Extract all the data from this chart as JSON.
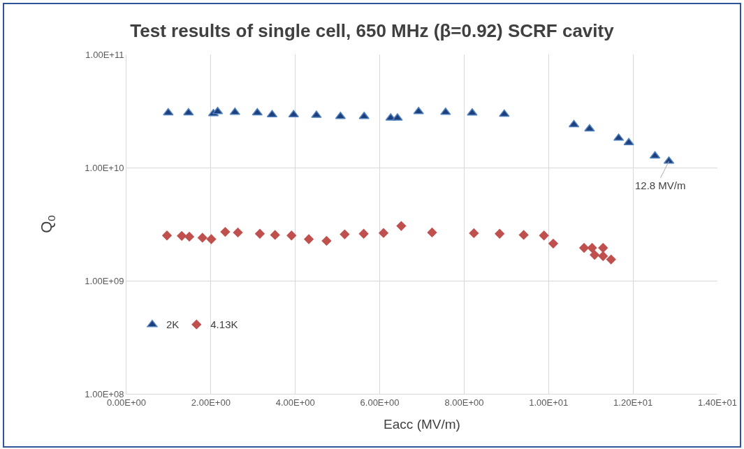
{
  "chart_data": {
    "type": "scatter",
    "title": "Test results of single cell, 650 MHz (β=0.92) SCRF cavity",
    "xlabel": "Eacc (MV/m)",
    "ylabel": "Q$_{0}$",
    "log": "y",
    "grid": true,
    "legend": "bottom left",
    "xlim": [
      0,
      14
    ],
    "xticks": [
      {
        "value": 0,
        "label": "0.00E+00"
      },
      {
        "value": 2,
        "label": "2.00E+00"
      },
      {
        "value": 4,
        "label": "4.00E+00"
      },
      {
        "value": 6,
        "label": "6.00E+00"
      },
      {
        "value": 8,
        "label": "8.00E+00"
      },
      {
        "value": 10,
        "label": "1.00E+01"
      },
      {
        "value": 12,
        "label": "1.20E+01"
      },
      {
        "value": 14,
        "label": "1.40E+01"
      }
    ],
    "ylim": [
      100000000,
      100000000000
    ],
    "yticks": [
      {
        "value": 100000000,
        "label": "1.00E+08"
      },
      {
        "value": 1000000000,
        "label": "1.00E+09"
      },
      {
        "value": 10000000000,
        "label": "1.00E+10"
      },
      {
        "value": 100000000000,
        "label": "1.00E+11"
      }
    ],
    "annotations": [
      {
        "text": "12.8 MV/m",
        "x": 12.85,
        "y": 11400000000
      }
    ],
    "series": [
      {
        "name": "2K",
        "color": "#1f3e7c",
        "marker": "triangle",
        "x": [
          0.99,
          1.47,
          2.06,
          2.16,
          2.57,
          3.1,
          3.45,
          3.96,
          4.5,
          5.07,
          5.63,
          6.26,
          6.42,
          6.92,
          7.56,
          8.19,
          8.95,
          10.6,
          10.97,
          11.66,
          11.9,
          12.52,
          12.85
        ],
        "values": [
          30500000000,
          30500000000,
          30000000000,
          31300000000,
          30800000000,
          30500000000,
          29400000000,
          29400000000,
          29000000000,
          28300000000,
          28300000000,
          27400000000,
          27400000000,
          31300000000,
          30800000000,
          30400000000,
          29700000000,
          24000000000,
          22000000000,
          18200000000,
          16600000000,
          12700000000,
          11400000000
        ]
      },
      {
        "name": "4.13K",
        "color": "#c0504d",
        "marker": "diamond",
        "x": [
          0.96,
          1.31,
          1.49,
          1.8,
          2.01,
          2.34,
          2.64,
          3.16,
          3.52,
          3.91,
          4.32,
          4.74,
          5.17,
          5.62,
          6.09,
          6.51,
          7.24,
          8.23,
          8.84,
          9.41,
          9.89,
          10.11,
          10.84,
          11.03,
          11.09,
          11.29,
          11.29,
          11.48
        ],
        "values": [
          2510000000,
          2490000000,
          2450000000,
          2400000000,
          2330000000,
          2700000000,
          2670000000,
          2600000000,
          2540000000,
          2510000000,
          2330000000,
          2250000000,
          2570000000,
          2600000000,
          2640000000,
          3050000000,
          2670000000,
          2630000000,
          2600000000,
          2540000000,
          2510000000,
          2130000000,
          1950000000,
          1950000000,
          1690000000,
          1950000000,
          1650000000,
          1540000000
        ]
      }
    ]
  }
}
